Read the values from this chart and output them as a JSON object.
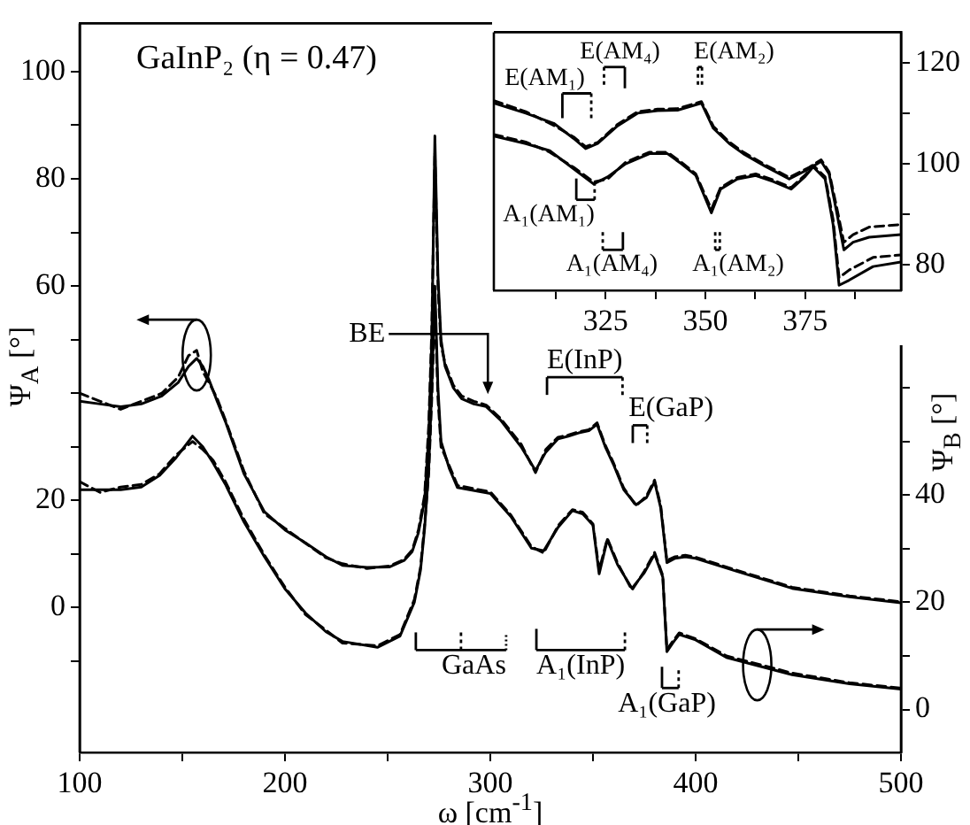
{
  "chart_data": [
    {
      "type": "line",
      "title": "GaInP₂ (η = 0.47)",
      "xlabel": "ω [cm$^{-1}$]",
      "ylabel": "Ψ$_{A}$ [°]",
      "y2label": "Ψ$_{B}$ [°]",
      "xlim": [
        100,
        500
      ],
      "xticks": [
        100,
        {
          "value": 150,
          "label": null
        },
        200,
        {
          "value": 250,
          "label": null
        },
        300,
        {
          "value": 350,
          "label": null
        },
        400,
        {
          "value": 450,
          "label": null
        },
        500
      ],
      "ylim": [
        -27,
        109
      ],
      "yticks": [
        {
          "value": -10,
          "label": null
        },
        0,
        {
          "value": 10,
          "label": null
        },
        20,
        {
          "value": 30,
          "label": null
        },
        {
          "value": 40,
          "label": null
        },
        {
          "value": 50,
          "label": null
        },
        60,
        {
          "value": 70,
          "label": null
        },
        80,
        {
          "value": 90,
          "label": null
        },
        100
      ],
      "y2lim": [
        -8,
        128
      ],
      "y2ticks": [
        0,
        {
          "value": 10,
          "label": null
        },
        20,
        {
          "value": 30,
          "label": null
        },
        40,
        {
          "value": 50,
          "label": null
        },
        {
          "value": 60,
          "label": null
        }
      ],
      "series": [
        {
          "color": "#000000",
          "line_style": "solid",
          "x": [
            100,
            110,
            120,
            130,
            140,
            148,
            153,
            157,
            160,
            163,
            167,
            171,
            180,
            190,
            200,
            210,
            220,
            228,
            240,
            251,
            258,
            262,
            265,
            268,
            270,
            271.5,
            273,
            274.5,
            276,
            278,
            282,
            286,
            292,
            298,
            305,
            315,
            322,
            327,
            333,
            338,
            343,
            348,
            352,
            356,
            360,
            365,
            371,
            376,
            380,
            383,
            386,
            390,
            395,
            400,
            420,
            447,
            475,
            500
          ],
          "values": [
            38.5,
            38,
            37.5,
            38,
            39.5,
            42,
            45,
            46.5,
            45,
            42.5,
            38.5,
            34.7,
            25,
            17.9,
            14.5,
            12.1,
            9.5,
            7.9,
            7.5,
            7.6,
            8.8,
            10.5,
            14,
            20,
            32,
            50,
            88,
            62,
            50,
            45,
            41,
            39,
            38,
            37.5,
            35,
            30,
            25.6,
            29,
            31.5,
            32,
            32.6,
            33,
            34.2,
            30,
            26.7,
            22,
            19.2,
            20.5,
            23.5,
            18.6,
            8.4,
            9.2,
            9.5,
            9.2,
            6.8,
            3.6,
            2,
            0.9
          ]
        },
        {
          "color": "#000000",
          "line_style": "dashed",
          "x": [
            100,
            110,
            120,
            130,
            140,
            148,
            153,
            157,
            160,
            163,
            167,
            171,
            180,
            190,
            200,
            210,
            220,
            228,
            240,
            251,
            258,
            262,
            265,
            268,
            270,
            271.5,
            273,
            274.5,
            276,
            278,
            282,
            286,
            292,
            298,
            305,
            315,
            322,
            327,
            333,
            338,
            343,
            348,
            352,
            356,
            360,
            365,
            371,
            376,
            380,
            383,
            386,
            390,
            395,
            400,
            420,
            447,
            475,
            500
          ],
          "values": [
            40,
            38.5,
            37,
            38.5,
            40,
            43,
            47,
            48,
            44,
            42,
            39,
            35,
            25.5,
            17.5,
            14.8,
            12,
            9.3,
            8.2,
            7.3,
            7.8,
            9,
            10.8,
            14.5,
            21,
            34,
            52,
            85,
            60,
            49,
            45.5,
            41.5,
            39.5,
            38.5,
            37.8,
            35.3,
            30.5,
            25.2,
            29.5,
            31.8,
            32.2,
            32.8,
            33.2,
            34.5,
            30.3,
            27,
            22.3,
            19,
            20.8,
            23.8,
            19,
            8.8,
            9.5,
            9.8,
            9.4,
            7,
            3.8,
            2.2,
            1.1
          ]
        },
        {
          "color": "#000000",
          "line_style": "solid",
          "axis": "y2",
          "x": [
            100,
            110,
            120,
            130,
            139,
            147,
            155,
            160,
            165,
            171,
            180,
            190,
            200,
            210,
            220,
            228,
            245,
            256,
            263,
            266,
            268,
            270,
            271.5,
            273,
            274.5,
            276,
            280,
            284,
            300,
            310,
            320,
            326,
            333,
            340,
            345,
            350,
            353,
            357,
            362,
            369,
            375,
            380,
            384,
            386,
            389,
            392,
            400,
            415,
            447,
            475,
            500
          ],
          "values": [
            41,
            41,
            41,
            41.5,
            43.7,
            47,
            51,
            49,
            46,
            42,
            35,
            28.5,
            22.5,
            18,
            14.5,
            12.7,
            11.6,
            13.7,
            20,
            26,
            33.7,
            45,
            60,
            79,
            60,
            50,
            45,
            41.4,
            40.3,
            36,
            30.1,
            29.6,
            34,
            37.1,
            36.5,
            34.4,
            25.3,
            31.7,
            27,
            22.6,
            25.5,
            29,
            24.7,
            10.8,
            12.5,
            14,
            13,
            9.7,
            6.5,
            4.8,
            3.8
          ]
        },
        {
          "color": "#000000",
          "line_style": "dashed",
          "axis": "y2",
          "x": [
            100,
            110,
            120,
            130,
            139,
            147,
            155,
            160,
            165,
            171,
            180,
            190,
            200,
            210,
            220,
            228,
            245,
            256,
            263,
            266,
            268,
            270,
            271.5,
            273,
            274.5,
            276,
            280,
            284,
            300,
            310,
            320,
            326,
            333,
            340,
            345,
            350,
            353,
            357,
            362,
            369,
            375,
            380,
            384,
            386,
            389,
            392,
            400,
            415,
            447,
            475,
            500
          ],
          "values": [
            42.5,
            40.5,
            41.5,
            42,
            44,
            47.5,
            50,
            48.5,
            46.5,
            42.5,
            35.5,
            28.8,
            22.8,
            17.7,
            14.8,
            12.4,
            11.9,
            14,
            20.5,
            26.5,
            34.5,
            44,
            58,
            76,
            58,
            49,
            45.5,
            41.8,
            40.6,
            36.3,
            30.4,
            29.2,
            34.3,
            37.3,
            36.8,
            34.6,
            26,
            31.9,
            27.3,
            22.3,
            25.8,
            29.3,
            25,
            11.2,
            12.8,
            14.3,
            13.2,
            10,
            6.8,
            5,
            4
          ]
        }
      ],
      "annotations": [
        "BE",
        "E(InP)",
        "E(GaP)",
        "GaAs",
        "A₁(InP)",
        "A₁(GaP)"
      ]
    },
    {
      "type": "line",
      "xlim": [
        297,
        399
      ],
      "xticks": [
        {
          "value": 312.5,
          "label": null
        },
        325,
        {
          "value": 337.5,
          "label": null
        },
        350,
        {
          "value": 362.5,
          "label": null
        },
        375,
        {
          "value": 387.5,
          "label": null
        }
      ],
      "ylim": [
        75,
        126
      ],
      "yticks": [
        80,
        {
          "value": 90,
          "label": null
        },
        100,
        {
          "value": 110,
          "label": null
        },
        120
      ],
      "series": [
        {
          "color": "#000000",
          "line_style": "solid",
          "x": [
            297,
            305,
            312,
            317,
            320,
            323,
            328,
            333,
            338,
            343,
            349,
            352,
            356,
            359.5,
            365,
            371,
            376,
            379,
            381,
            383,
            384.7,
            387,
            391,
            399
          ],
          "values": [
            112,
            110,
            108,
            105,
            103,
            104,
            107.5,
            110,
            110.5,
            110.6,
            112,
            107,
            104,
            102,
            99.5,
            97,
            99,
            100.5,
            98,
            90,
            83,
            84.5,
            85.5,
            86
          ]
        },
        {
          "color": "#000000",
          "line_style": "dashed",
          "x": [
            297,
            305,
            312,
            317,
            320,
            323,
            328,
            333,
            338,
            343,
            349,
            352,
            356,
            359.5,
            365,
            371,
            376,
            379,
            381,
            383,
            384.7,
            387,
            391,
            399
          ],
          "values": [
            112.5,
            110.3,
            107.6,
            105.3,
            103.4,
            104.2,
            107.8,
            110.3,
            110.8,
            110.9,
            112.3,
            107.4,
            104.3,
            102.3,
            99.8,
            97.3,
            99.3,
            100.8,
            98.4,
            91,
            84.5,
            86,
            87.5,
            88
          ]
        },
        {
          "color": "#000000",
          "line_style": "solid",
          "x": [
            297,
            305,
            311,
            317,
            322,
            325.5,
            330,
            336,
            340.5,
            344,
            347.6,
            351.5,
            353.8,
            358,
            362.6,
            367,
            371.5,
            375,
            377,
            380,
            382,
            383.5,
            386,
            392,
            399
          ],
          "values": [
            105.5,
            104,
            102.6,
            99,
            96,
            97.4,
            100,
            102,
            102,
            100,
            97.7,
            90.3,
            95,
            97,
            97.7,
            96.5,
            95,
            97.5,
            99.4,
            97,
            88,
            76,
            77,
            79.7,
            80.6
          ]
        },
        {
          "color": "#000000",
          "line_style": "dashed",
          "x": [
            297,
            305,
            311,
            317,
            322,
            325.5,
            330,
            336,
            340.5,
            344,
            347.6,
            351.5,
            353.8,
            358,
            362.6,
            367,
            371.5,
            375,
            377,
            380,
            382,
            383.5,
            386,
            392,
            399
          ],
          "values": [
            105.8,
            104.3,
            102.3,
            99.3,
            96.4,
            97,
            100.3,
            102.3,
            102.3,
            100.3,
            98,
            91,
            95.3,
            97.3,
            98,
            96.8,
            95.3,
            97.8,
            99.7,
            97.4,
            89,
            77.5,
            79,
            81.5,
            82
          ]
        }
      ],
      "annotations": [
        "E(AM₁)",
        "E(AM₄)",
        "E(AM₂)",
        "A₁(AM₁)",
        "A₁(AM₄)",
        "A₁(AM₂)"
      ]
    }
  ]
}
